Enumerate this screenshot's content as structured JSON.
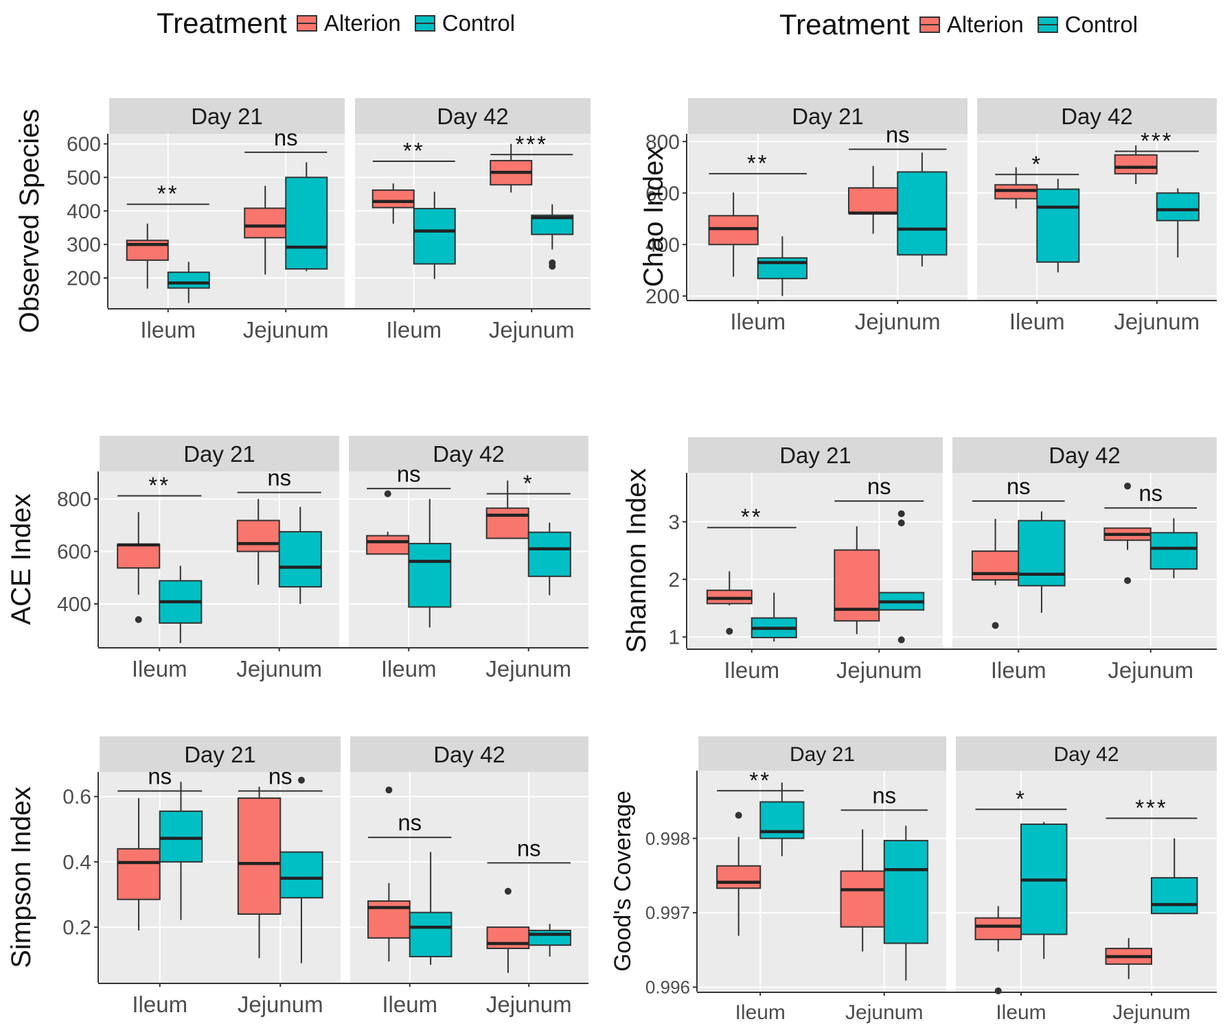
{
  "legend": {
    "title": "Treatment",
    "entries": [
      {
        "label": "Alterion",
        "color": "#F8766D"
      },
      {
        "label": "Control",
        "color": "#00BFC4"
      }
    ]
  },
  "chart_data": [
    {
      "id": "observed-species",
      "type": "boxplot",
      "ylabel": "Observed Species",
      "ylim": [
        110,
        630
      ],
      "yticks": [
        200,
        300,
        400,
        500,
        600
      ],
      "ytick_labels": [
        "200",
        "300",
        "400",
        "500",
        "600"
      ],
      "categories": [
        "Ileum",
        "Jejunum"
      ],
      "series_names": [
        "Alterion",
        "Control"
      ],
      "panels": [
        {
          "facet": "Day 21",
          "boxes": [
            [
              {
                "min": 168,
                "q1": 253,
                "median": 300,
                "q3": 312,
                "max": 362,
                "outliers": []
              },
              {
                "min": 125,
                "q1": 170,
                "median": 185,
                "q3": 217,
                "max": 248,
                "outliers": []
              }
            ],
            [
              {
                "min": 210,
                "q1": 320,
                "median": 355,
                "q3": 408,
                "max": 475,
                "outliers": []
              },
              {
                "min": 220,
                "q1": 227,
                "median": 292,
                "q3": 500,
                "max": 545,
                "outliers": []
              }
            ]
          ],
          "signif": [
            {
              "label": "**",
              "y": 420
            },
            {
              "label": "ns",
              "y": 575
            }
          ]
        },
        {
          "facet": "Day 42",
          "boxes": [
            [
              {
                "min": 362,
                "q1": 410,
                "median": 428,
                "q3": 462,
                "max": 482,
                "outliers": []
              },
              {
                "min": 197,
                "q1": 242,
                "median": 340,
                "q3": 407,
                "max": 457,
                "outliers": []
              }
            ],
            [
              {
                "min": 455,
                "q1": 478,
                "median": 515,
                "q3": 550,
                "max": 600,
                "outliers": []
              },
              {
                "min": 285,
                "q1": 330,
                "median": 380,
                "q3": 387,
                "max": 420,
                "outliers": [
                  235,
                  245
                ]
              }
            ]
          ],
          "signif": [
            {
              "label": "**",
              "y": 548
            },
            {
              "label": "***",
              "y": 568
            }
          ]
        }
      ]
    },
    {
      "id": "chao-index",
      "type": "boxplot",
      "ylabel": "Chao Index",
      "ylim": [
        185,
        830
      ],
      "yticks": [
        200,
        400,
        600,
        800
      ],
      "ytick_labels": [
        "200",
        "400",
        "600",
        "800"
      ],
      "categories": [
        "Ileum",
        "Jejunum"
      ],
      "series_names": [
        "Alterion",
        "Control"
      ],
      "panels": [
        {
          "facet": "Day 21",
          "boxes": [
            [
              {
                "min": 275,
                "q1": 400,
                "median": 462,
                "q3": 512,
                "max": 602,
                "outliers": []
              },
              {
                "min": 200,
                "q1": 268,
                "median": 330,
                "q3": 348,
                "max": 432,
                "outliers": []
              }
            ],
            [
              {
                "min": 442,
                "q1": 522,
                "median": 522,
                "q3": 620,
                "max": 705,
                "outliers": []
              },
              {
                "min": 315,
                "q1": 360,
                "median": 460,
                "q3": 682,
                "max": 757,
                "outliers": []
              }
            ]
          ],
          "signif": [
            {
              "label": "**",
              "y": 675
            },
            {
              "label": "ns",
              "y": 770
            }
          ]
        },
        {
          "facet": "Day 42",
          "boxes": [
            [
              {
                "min": 540,
                "q1": 578,
                "median": 610,
                "q3": 632,
                "max": 700,
                "outliers": []
              },
              {
                "min": 292,
                "q1": 332,
                "median": 545,
                "q3": 615,
                "max": 655,
                "outliers": []
              }
            ],
            [
              {
                "min": 635,
                "q1": 675,
                "median": 700,
                "q3": 748,
                "max": 785,
                "outliers": []
              },
              {
                "min": 350,
                "q1": 493,
                "median": 535,
                "q3": 600,
                "max": 618,
                "outliers": []
              }
            ]
          ],
          "signif": [
            {
              "label": "*",
              "y": 672
            },
            {
              "label": "***",
              "y": 762
            }
          ]
        }
      ]
    },
    {
      "id": "ace-index",
      "type": "boxplot",
      "ylabel": "ACE Index",
      "ylim": [
        235,
        905
      ],
      "yticks": [
        400,
        600,
        800
      ],
      "ytick_labels": [
        "400",
        "600",
        "800"
      ],
      "categories": [
        "Ileum",
        "Jejunum"
      ],
      "series_names": [
        "Alterion",
        "Control"
      ],
      "panels": [
        {
          "facet": "Day 21",
          "boxes": [
            [
              {
                "min": 435,
                "q1": 537,
                "median": 625,
                "q3": 627,
                "max": 750,
                "outliers": [
                  340
                ]
              },
              {
                "min": 250,
                "q1": 327,
                "median": 408,
                "q3": 488,
                "max": 545,
                "outliers": []
              }
            ],
            [
              {
                "min": 473,
                "q1": 600,
                "median": 630,
                "q3": 718,
                "max": 800,
                "outliers": []
              },
              {
                "min": 400,
                "q1": 465,
                "median": 540,
                "q3": 675,
                "max": 770,
                "outliers": []
              }
            ]
          ],
          "signif": [
            {
              "label": "**",
              "y": 812
            },
            {
              "label": "ns",
              "y": 825
            }
          ]
        },
        {
          "facet": "Day 42",
          "boxes": [
            [
              {
                "min": 590,
                "q1": 590,
                "median": 637,
                "q3": 660,
                "max": 675,
                "outliers": [
                  820
                ]
              },
              {
                "min": 310,
                "q1": 388,
                "median": 562,
                "q3": 630,
                "max": 800,
                "outliers": []
              }
            ],
            [
              {
                "min": 650,
                "q1": 650,
                "median": 738,
                "q3": 765,
                "max": 870,
                "outliers": []
              },
              {
                "min": 433,
                "q1": 505,
                "median": 610,
                "q3": 673,
                "max": 710,
                "outliers": []
              }
            ]
          ],
          "signif": [
            {
              "label": "ns",
              "y": 840
            },
            {
              "label": "*",
              "y": 820
            }
          ]
        }
      ]
    },
    {
      "id": "shannon-index",
      "type": "boxplot",
      "ylabel": "Shannon Index",
      "ylim": [
        0.8,
        3.85
      ],
      "yticks": [
        1,
        2,
        3
      ],
      "ytick_labels": [
        "1",
        "2",
        "3"
      ],
      "categories": [
        "Ileum",
        "Jejunum"
      ],
      "series_names": [
        "Alterion",
        "Control"
      ],
      "panels": [
        {
          "facet": "Day 21",
          "boxes": [
            [
              {
                "min": 1.55,
                "q1": 1.58,
                "median": 1.67,
                "q3": 1.81,
                "max": 2.14,
                "outliers": [
                  1.1
                ]
              },
              {
                "min": 0.92,
                "q1": 0.99,
                "median": 1.15,
                "q3": 1.33,
                "max": 1.77,
                "outliers": []
              }
            ],
            [
              {
                "min": 1.05,
                "q1": 1.28,
                "median": 1.48,
                "q3": 2.51,
                "max": 2.92,
                "outliers": []
              },
              {
                "min": 1.47,
                "q1": 1.47,
                "median": 1.61,
                "q3": 1.77,
                "max": 1.78,
                "outliers": [
                  0.95,
                  2.98,
                  3.14
                ]
              }
            ]
          ],
          "signif": [
            {
              "label": "**",
              "y": 2.9
            },
            {
              "label": "ns",
              "y": 3.36
            }
          ]
        },
        {
          "facet": "Day 42",
          "boxes": [
            [
              {
                "min": 1.9,
                "q1": 1.99,
                "median": 2.1,
                "q3": 2.49,
                "max": 3.05,
                "outliers": [
                  1.2
                ]
              },
              {
                "min": 1.42,
                "q1": 1.89,
                "median": 2.09,
                "q3": 3.02,
                "max": 3.18,
                "outliers": []
              }
            ],
            [
              {
                "min": 2.51,
                "q1": 2.68,
                "median": 2.78,
                "q3": 2.89,
                "max": 2.89,
                "outliers": [
                  1.98,
                  3.62
                ]
              },
              {
                "min": 2.02,
                "q1": 2.18,
                "median": 2.54,
                "q3": 2.81,
                "max": 3.06,
                "outliers": []
              }
            ]
          ],
          "signif": [
            {
              "label": "ns",
              "y": 3.36
            },
            {
              "label": "ns",
              "y": 3.24
            }
          ]
        }
      ]
    },
    {
      "id": "simpson-index",
      "type": "boxplot",
      "ylabel": "Simpson Index",
      "ylim": [
        0.03,
        0.675
      ],
      "yticks": [
        0.2,
        0.4,
        0.6
      ],
      "ytick_labels": [
        "0.2",
        "0.4",
        "0.6"
      ],
      "categories": [
        "Ileum",
        "Jejunum"
      ],
      "series_names": [
        "Alterion",
        "Control"
      ],
      "panels": [
        {
          "facet": "Day 21",
          "boxes": [
            [
              {
                "min": 0.19,
                "q1": 0.285,
                "median": 0.398,
                "q3": 0.44,
                "max": 0.595,
                "outliers": []
              },
              {
                "min": 0.222,
                "q1": 0.4,
                "median": 0.472,
                "q3": 0.555,
                "max": 0.645,
                "outliers": []
              }
            ],
            [
              {
                "min": 0.105,
                "q1": 0.24,
                "median": 0.395,
                "q3": 0.595,
                "max": 0.63,
                "outliers": []
              },
              {
                "min": 0.09,
                "q1": 0.29,
                "median": 0.35,
                "q3": 0.43,
                "max": 0.43,
                "outliers": [
                  0.65
                ]
              }
            ]
          ],
          "signif": [
            {
              "label": "ns",
              "y": 0.617
            },
            {
              "label": "ns",
              "y": 0.617
            }
          ]
        },
        {
          "facet": "Day 42",
          "boxes": [
            [
              {
                "min": 0.095,
                "q1": 0.167,
                "median": 0.26,
                "q3": 0.28,
                "max": 0.335,
                "outliers": [
                  0.62
                ]
              },
              {
                "min": 0.085,
                "q1": 0.11,
                "median": 0.2,
                "q3": 0.245,
                "max": 0.43,
                "outliers": []
              }
            ],
            [
              {
                "min": 0.06,
                "q1": 0.135,
                "median": 0.15,
                "q3": 0.2,
                "max": 0.2,
                "outliers": [
                  0.31
                ]
              },
              {
                "min": 0.11,
                "q1": 0.145,
                "median": 0.178,
                "q3": 0.19,
                "max": 0.21,
                "outliers": []
              }
            ]
          ],
          "signif": [
            {
              "label": "ns",
              "y": 0.475
            },
            {
              "label": "ns",
              "y": 0.397
            }
          ]
        }
      ]
    },
    {
      "id": "goods-coverage",
      "type": "boxplot",
      "ylabel": "Good's Coverage",
      "ylim": [
        0.99594,
        0.99891
      ],
      "yticks": [
        0.996,
        0.997,
        0.998
      ],
      "ytick_labels": [
        "0.996",
        "0.997",
        "0.998"
      ],
      "categories": [
        "Ileum",
        "Jejunum"
      ],
      "series_names": [
        "Alterion",
        "Control"
      ],
      "panels": [
        {
          "facet": "Day 21",
          "boxes": [
            [
              {
                "min": 0.99669,
                "q1": 0.99733,
                "median": 0.99741,
                "q3": 0.99763,
                "max": 0.99802,
                "outliers": [
                  0.99831
                ]
              },
              {
                "min": 0.99776,
                "q1": 0.998,
                "median": 0.99809,
                "q3": 0.99849,
                "max": 0.99875,
                "outliers": []
              }
            ],
            [
              {
                "min": 0.99648,
                "q1": 0.99681,
                "median": 0.99731,
                "q3": 0.99756,
                "max": 0.99812,
                "outliers": []
              },
              {
                "min": 0.99609,
                "q1": 0.99659,
                "median": 0.99758,
                "q3": 0.99797,
                "max": 0.99817,
                "outliers": []
              }
            ]
          ],
          "signif": [
            {
              "label": "**",
              "y": 0.99864
            },
            {
              "label": "ns",
              "y": 0.99838
            }
          ]
        },
        {
          "facet": "Day 42",
          "boxes": [
            [
              {
                "min": 0.99648,
                "q1": 0.99664,
                "median": 0.99682,
                "q3": 0.99693,
                "max": 0.99709,
                "outliers": [
                  0.99595
                ]
              },
              {
                "min": 0.99638,
                "q1": 0.99671,
                "median": 0.99744,
                "q3": 0.99819,
                "max": 0.99822,
                "outliers": []
              }
            ],
            [
              {
                "min": 0.99611,
                "q1": 0.99631,
                "median": 0.99641,
                "q3": 0.99652,
                "max": 0.99666,
                "outliers": []
              },
              {
                "min": 0.99698,
                "q1": 0.99699,
                "median": 0.99711,
                "q3": 0.99747,
                "max": 0.998,
                "outliers": []
              }
            ]
          ],
          "signif": [
            {
              "label": "*",
              "y": 0.99839
            },
            {
              "label": "***",
              "y": 0.99827
            }
          ]
        }
      ]
    }
  ]
}
